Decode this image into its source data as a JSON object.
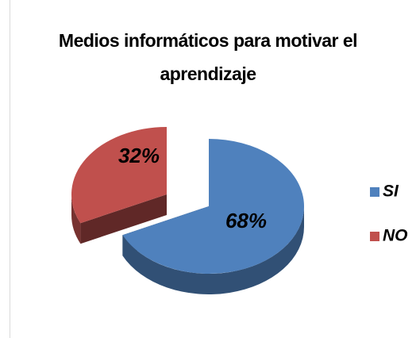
{
  "chart_data": {
    "type": "pie",
    "title": "Medios informáticos para motivar el aprendizaje",
    "categories": [
      "SI",
      "NO"
    ],
    "values": [
      68,
      32
    ],
    "value_labels": [
      "68%",
      "32%"
    ],
    "colors": [
      "#4f81bd",
      "#c0504d"
    ],
    "legend": "right"
  }
}
